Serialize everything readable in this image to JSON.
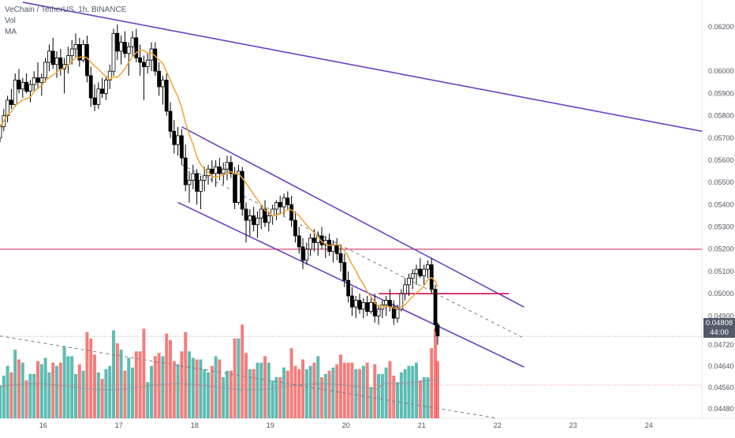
{
  "legend": {
    "title": "VeChain / TetherUS, 1h, BINANCE",
    "vol": "Vol",
    "ma": "MA"
  },
  "price_tag": {
    "price": "0.04808",
    "countdown": "44:00"
  },
  "colors": {
    "up": "#26a69a",
    "down": "#ef5350",
    "candle": "#000000",
    "ma": "#f0a431",
    "channel": "#6c3fc4",
    "level": "#d84a7a",
    "resistance": "#d81b60",
    "tag_bg": "#535a6a",
    "axis_text": "#50535e"
  },
  "chart_data": {
    "type": "candlestick",
    "title": "VeChain / TetherUS, 1h, BINANCE",
    "ylim": [
      0.0444,
      0.0632
    ],
    "y_ticks": [
      "0.04480",
      "0.04560",
      "0.04640",
      "0.04720",
      "0.04900",
      "0.05000",
      "0.05100",
      "0.05200",
      "0.05300",
      "0.05400",
      "0.05500",
      "0.05600",
      "0.05700",
      "0.05800",
      "0.05900",
      "0.06000",
      "0.06200"
    ],
    "x_ticks": [
      {
        "label": "16",
        "day": 16
      },
      {
        "label": "17",
        "day": 17
      },
      {
        "label": "18",
        "day": 18
      },
      {
        "label": "19",
        "day": 19
      },
      {
        "label": "20",
        "day": 20
      },
      {
        "label": "21",
        "day": 21
      },
      {
        "label": "22",
        "day": 22
      },
      {
        "label": "23",
        "day": 23
      },
      {
        "label": "24",
        "day": 24
      }
    ],
    "xlim_days": [
      15.43,
      24.7
    ],
    "candles": [
      [
        15.43,
        0.057,
        0.0576,
        0.0568,
        0.0575
      ],
      [
        15.48,
        0.0575,
        0.0583,
        0.0573,
        0.058
      ],
      [
        15.53,
        0.058,
        0.0589,
        0.0577,
        0.0587
      ],
      [
        15.58,
        0.0587,
        0.0592,
        0.0583,
        0.0585
      ],
      [
        15.63,
        0.0585,
        0.0599,
        0.0584,
        0.0596
      ],
      [
        15.68,
        0.0596,
        0.0601,
        0.059,
        0.0592
      ],
      [
        15.73,
        0.0592,
        0.0597,
        0.0588,
        0.0595
      ],
      [
        15.78,
        0.0595,
        0.0599,
        0.059,
        0.0591
      ],
      [
        15.83,
        0.0591,
        0.0596,
        0.0586,
        0.0594
      ],
      [
        15.88,
        0.0594,
        0.06,
        0.0591,
        0.0597
      ],
      [
        15.93,
        0.0597,
        0.0604,
        0.0592,
        0.0595
      ],
      [
        15.98,
        0.0595,
        0.0599,
        0.0589,
        0.0597
      ],
      [
        16.03,
        0.0597,
        0.0606,
        0.0595,
        0.0604
      ],
      [
        16.08,
        0.0604,
        0.0612,
        0.06,
        0.0609
      ],
      [
        16.13,
        0.0609,
        0.0615,
        0.0601,
        0.0603
      ],
      [
        16.18,
        0.0603,
        0.0609,
        0.0597,
        0.0606
      ],
      [
        16.23,
        0.0606,
        0.061,
        0.0598,
        0.0601
      ],
      [
        16.28,
        0.0601,
        0.0606,
        0.059,
        0.0603
      ],
      [
        16.33,
        0.0603,
        0.0611,
        0.0599,
        0.0607
      ],
      [
        16.38,
        0.0607,
        0.0614,
        0.0603,
        0.061
      ],
      [
        16.43,
        0.061,
        0.0617,
        0.0606,
        0.0612
      ],
      [
        16.48,
        0.0612,
        0.0615,
        0.0602,
        0.0605
      ],
      [
        16.53,
        0.0605,
        0.0614,
        0.0604,
        0.0612
      ],
      [
        16.58,
        0.0612,
        0.0616,
        0.0595,
        0.0598
      ],
      [
        16.63,
        0.0598,
        0.0602,
        0.0584,
        0.0588
      ],
      [
        16.68,
        0.0588,
        0.0594,
        0.0582,
        0.0585
      ],
      [
        16.73,
        0.0585,
        0.0595,
        0.0583,
        0.0592
      ],
      [
        16.78,
        0.0592,
        0.0597,
        0.0588,
        0.059
      ],
      [
        16.83,
        0.059,
        0.0598,
        0.0587,
        0.0596
      ],
      [
        16.88,
        0.0596,
        0.0603,
        0.0592,
        0.06
      ],
      [
        16.93,
        0.06,
        0.0619,
        0.0598,
        0.0617
      ],
      [
        16.98,
        0.0617,
        0.0621,
        0.0605,
        0.0609
      ],
      [
        17.03,
        0.0609,
        0.0616,
        0.0603,
        0.0613
      ],
      [
        17.08,
        0.0613,
        0.0618,
        0.0606,
        0.0608
      ],
      [
        17.13,
        0.0608,
        0.0613,
        0.0598,
        0.0611
      ],
      [
        17.18,
        0.0611,
        0.0618,
        0.0607,
        0.0615
      ],
      [
        17.23,
        0.0615,
        0.0619,
        0.0604,
        0.0606
      ],
      [
        17.28,
        0.0606,
        0.0612,
        0.0598,
        0.0604
      ],
      [
        17.33,
        0.0604,
        0.0607,
        0.0587,
        0.0602
      ],
      [
        17.38,
        0.0602,
        0.0608,
        0.0599,
        0.0605
      ],
      [
        17.43,
        0.0605,
        0.0613,
        0.06,
        0.061
      ],
      [
        17.48,
        0.061,
        0.0613,
        0.0598,
        0.06
      ],
      [
        17.53,
        0.06,
        0.0604,
        0.0589,
        0.0593
      ],
      [
        17.58,
        0.0593,
        0.0598,
        0.0585,
        0.0596
      ],
      [
        17.63,
        0.0596,
        0.0599,
        0.058,
        0.0582
      ],
      [
        17.68,
        0.0582,
        0.0586,
        0.057,
        0.0573
      ],
      [
        17.73,
        0.0573,
        0.0578,
        0.0563,
        0.0567
      ],
      [
        17.78,
        0.0567,
        0.0575,
        0.0562,
        0.0571
      ],
      [
        17.83,
        0.0571,
        0.0574,
        0.0558,
        0.0561
      ],
      [
        17.88,
        0.0561,
        0.0567,
        0.0546,
        0.0549
      ],
      [
        17.93,
        0.0549,
        0.0555,
        0.0541,
        0.0551
      ],
      [
        17.98,
        0.0551,
        0.0558,
        0.0547,
        0.0554
      ],
      [
        18.03,
        0.0554,
        0.0556,
        0.054,
        0.0546
      ],
      [
        18.08,
        0.0546,
        0.0553,
        0.0538,
        0.0551
      ],
      [
        18.13,
        0.0551,
        0.0557,
        0.0546,
        0.0553
      ],
      [
        18.18,
        0.0553,
        0.0558,
        0.0549,
        0.0556
      ],
      [
        18.23,
        0.0556,
        0.056,
        0.055,
        0.0554
      ],
      [
        18.28,
        0.0554,
        0.056,
        0.0548,
        0.0557
      ],
      [
        18.33,
        0.0557,
        0.0561,
        0.0551,
        0.0554
      ],
      [
        18.38,
        0.0554,
        0.0559,
        0.0549,
        0.0556
      ],
      [
        18.43,
        0.0556,
        0.0562,
        0.0551,
        0.0559
      ],
      [
        18.48,
        0.0559,
        0.0562,
        0.0552,
        0.0554
      ],
      [
        18.53,
        0.0554,
        0.0557,
        0.0538,
        0.0541
      ],
      [
        18.58,
        0.0541,
        0.0558,
        0.054,
        0.0555
      ],
      [
        18.63,
        0.0555,
        0.0557,
        0.0535,
        0.0538
      ],
      [
        18.68,
        0.0538,
        0.0541,
        0.0523,
        0.0533
      ],
      [
        18.73,
        0.0533,
        0.0538,
        0.0526,
        0.0535
      ],
      [
        18.78,
        0.0535,
        0.0539,
        0.0528,
        0.0531
      ],
      [
        18.83,
        0.0531,
        0.0537,
        0.0525,
        0.0534
      ],
      [
        18.88,
        0.0534,
        0.054,
        0.0529,
        0.0538
      ],
      [
        18.93,
        0.0538,
        0.0542,
        0.053,
        0.0532
      ],
      [
        18.98,
        0.0532,
        0.0537,
        0.0528,
        0.0535
      ],
      [
        19.03,
        0.0535,
        0.054,
        0.0531,
        0.0538
      ],
      [
        19.08,
        0.0538,
        0.0542,
        0.0533,
        0.0541
      ],
      [
        19.13,
        0.0541,
        0.0544,
        0.0536,
        0.0539
      ],
      [
        19.18,
        0.0539,
        0.0545,
        0.0535,
        0.0543
      ],
      [
        19.23,
        0.0543,
        0.0546,
        0.0538,
        0.054
      ],
      [
        19.28,
        0.054,
        0.0544,
        0.053,
        0.0533
      ],
      [
        19.33,
        0.0533,
        0.0537,
        0.0523,
        0.0526
      ],
      [
        19.38,
        0.0526,
        0.053,
        0.0518,
        0.0521
      ],
      [
        19.43,
        0.0521,
        0.0525,
        0.0511,
        0.0515
      ],
      [
        19.48,
        0.0515,
        0.0523,
        0.0513,
        0.052
      ],
      [
        19.53,
        0.052,
        0.0527,
        0.0517,
        0.0525
      ],
      [
        19.58,
        0.0525,
        0.0529,
        0.0519,
        0.0523
      ],
      [
        19.63,
        0.0523,
        0.0528,
        0.0517,
        0.0526
      ],
      [
        19.68,
        0.0526,
        0.053,
        0.052,
        0.0522
      ],
      [
        19.73,
        0.0522,
        0.0526,
        0.0516,
        0.0524
      ],
      [
        19.78,
        0.0524,
        0.0527,
        0.0517,
        0.0519
      ],
      [
        19.83,
        0.0519,
        0.0524,
        0.0514,
        0.0522
      ],
      [
        19.88,
        0.0522,
        0.0525,
        0.0515,
        0.0518
      ],
      [
        19.93,
        0.0518,
        0.0522,
        0.051,
        0.0514
      ],
      [
        19.98,
        0.0514,
        0.0518,
        0.0503,
        0.0506
      ],
      [
        20.03,
        0.0506,
        0.051,
        0.0496,
        0.0499
      ],
      [
        20.08,
        0.0499,
        0.0503,
        0.049,
        0.0494
      ],
      [
        20.13,
        0.0494,
        0.0499,
        0.0489,
        0.0497
      ],
      [
        20.18,
        0.0497,
        0.05,
        0.0491,
        0.0493
      ],
      [
        20.23,
        0.0493,
        0.0498,
        0.0489,
        0.0496
      ],
      [
        20.28,
        0.0496,
        0.0499,
        0.049,
        0.0492
      ],
      [
        20.33,
        0.0492,
        0.0498,
        0.0491,
        0.0496
      ],
      [
        20.38,
        0.0496,
        0.05,
        0.0487,
        0.049
      ],
      [
        20.43,
        0.049,
        0.0495,
        0.0486,
        0.0493
      ],
      [
        20.48,
        0.0493,
        0.0497,
        0.0489,
        0.0495
      ],
      [
        20.53,
        0.0495,
        0.0499,
        0.049,
        0.0497
      ],
      [
        20.58,
        0.0497,
        0.0502,
        0.0492,
        0.0494
      ],
      [
        20.63,
        0.0494,
        0.0497,
        0.0486,
        0.0489
      ],
      [
        20.68,
        0.0489,
        0.0495,
        0.0487,
        0.0493
      ],
      [
        20.73,
        0.0493,
        0.0502,
        0.0492,
        0.05
      ],
      [
        20.78,
        0.05,
        0.0507,
        0.0497,
        0.0504
      ],
      [
        20.83,
        0.0504,
        0.0509,
        0.0499,
        0.0507
      ],
      [
        20.88,
        0.0507,
        0.0511,
        0.0502,
        0.0509
      ],
      [
        20.93,
        0.0509,
        0.0513,
        0.0504,
        0.0511
      ],
      [
        20.98,
        0.0511,
        0.0516,
        0.0507,
        0.0508
      ],
      [
        21.03,
        0.0508,
        0.0513,
        0.0504,
        0.0511
      ],
      [
        21.08,
        0.0511,
        0.0515,
        0.0507,
        0.0513
      ],
      [
        21.13,
        0.0513,
        0.0516,
        0.05,
        0.0502
      ],
      [
        21.18,
        0.0502,
        0.0504,
        0.0483,
        0.0486
      ],
      [
        21.21,
        0.0486,
        0.0487,
        0.0477,
        0.0481
      ]
    ],
    "volume_ylim": [
      0,
      55000
    ],
    "volume_series_name": "Vol",
    "ma_series_name": "MA"
  },
  "drawings": {
    "upper_trend": {
      "p1": [
        15.73,
        0.0631
      ],
      "p2": [
        24.7,
        0.0573
      ]
    },
    "channel_top": {
      "p1": [
        17.83,
        0.0575
      ],
      "p2": [
        22.35,
        0.0494
      ]
    },
    "channel_bottom": {
      "p1": [
        17.78,
        0.0541
      ],
      "p2": [
        22.35,
        0.0467
      ]
    },
    "channel_mid": {
      "p1": [
        17.83,
        0.0558
      ],
      "p2": [
        22.35,
        0.048
      ]
    },
    "horizontal_level": {
      "price": 0.052
    },
    "resistance_line": {
      "day_from": 20.43,
      "day_to": 22.15,
      "price": 0.05
    },
    "volume_trend": {
      "p1": [
        15.43,
        0.0481
      ],
      "p2": [
        22.0,
        0.0444
      ]
    }
  }
}
